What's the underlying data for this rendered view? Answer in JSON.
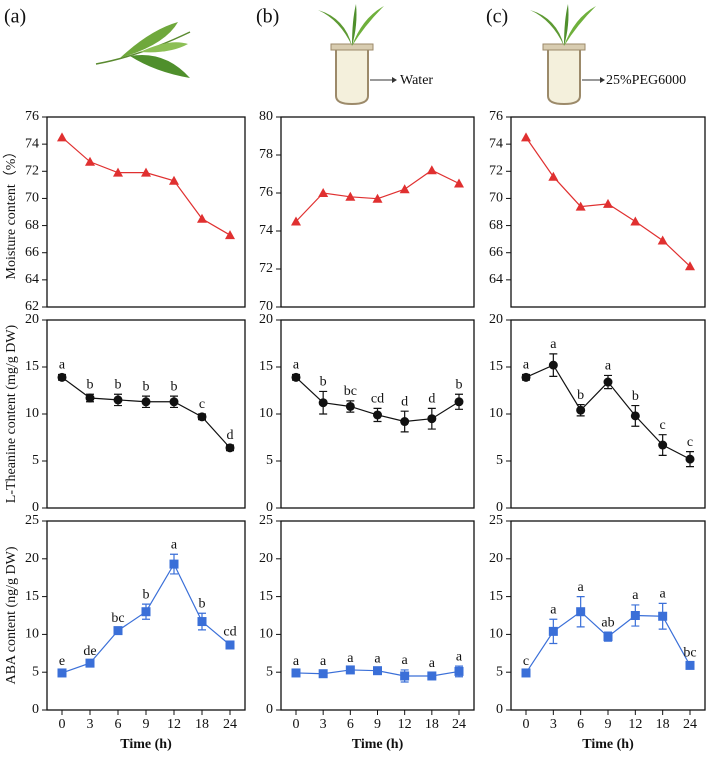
{
  "panels": [
    {
      "label": "(a)"
    },
    {
      "label": "(b)",
      "medium": "Water"
    },
    {
      "label": "(c)",
      "medium": "25%PEG6000"
    }
  ],
  "chart_data": [
    {
      "type": "line",
      "ylabel": "Moisture content（%）",
      "ylim": [
        62,
        76
      ],
      "yticks": [
        62,
        64,
        66,
        68,
        70,
        72,
        74,
        76
      ],
      "color": "#e03030",
      "marker": "triangle",
      "values": [
        74.5,
        72.7,
        71.9,
        71.9,
        71.3,
        68.5,
        67.3
      ]
    },
    {
      "type": "line",
      "ylim": [
        70,
        80
      ],
      "yticks": [
        70,
        72,
        74,
        76,
        78,
        80
      ],
      "color": "#e03030",
      "marker": "triangle",
      "values": [
        74.5,
        76.0,
        75.8,
        75.7,
        76.2,
        77.2,
        76.5
      ]
    },
    {
      "type": "line",
      "ylim": [
        62,
        76
      ],
      "yticks": [
        64,
        66,
        68,
        70,
        72,
        74,
        76
      ],
      "color": "#e03030",
      "marker": "triangle",
      "values": [
        74.5,
        71.6,
        69.4,
        69.6,
        68.3,
        66.9,
        65.0
      ]
    },
    {
      "type": "line",
      "ylabel": "L-Theanine content (mg/g DW)",
      "ylim": [
        0,
        20
      ],
      "yticks": [
        0,
        5,
        10,
        15,
        20
      ],
      "color": "#111111",
      "marker": "circle",
      "values": [
        13.9,
        11.7,
        11.5,
        11.3,
        11.3,
        9.7,
        6.4
      ],
      "errors": [
        0.3,
        0.4,
        0.6,
        0.6,
        0.6,
        0.3,
        0.3
      ],
      "annotations": [
        "a",
        "b",
        "b",
        "b",
        "b",
        "c",
        "d"
      ]
    },
    {
      "type": "line",
      "ylim": [
        0,
        20
      ],
      "yticks": [
        0,
        5,
        10,
        15,
        20
      ],
      "color": "#111111",
      "marker": "circle",
      "values": [
        13.9,
        11.2,
        10.8,
        9.9,
        9.2,
        9.5,
        11.3
      ],
      "errors": [
        0.3,
        1.2,
        0.6,
        0.7,
        1.1,
        1.1,
        0.8
      ],
      "annotations": [
        "a",
        "b",
        "bc",
        "cd",
        "d",
        "d",
        "b"
      ]
    },
    {
      "type": "line",
      "ylim": [
        0,
        20
      ],
      "yticks": [
        0,
        5,
        10,
        15,
        20
      ],
      "color": "#111111",
      "marker": "circle",
      "values": [
        13.9,
        15.2,
        10.4,
        13.4,
        9.8,
        6.7,
        5.2
      ],
      "errors": [
        0.3,
        1.2,
        0.6,
        0.7,
        1.1,
        1.1,
        0.8
      ],
      "annotations": [
        "a",
        "a",
        "b",
        "a",
        "b",
        "c",
        "c"
      ]
    },
    {
      "type": "line",
      "ylabel": "ABA  content (ng/g DW)",
      "xlabel": "Time (h)",
      "categories": [
        "0",
        "3",
        "6",
        "9",
        "12",
        "18",
        "24"
      ],
      "ylim": [
        0,
        25
      ],
      "yticks": [
        0,
        5,
        10,
        15,
        20,
        25
      ],
      "color": "#3a6fd8",
      "marker": "square",
      "values": [
        4.9,
        6.2,
        10.5,
        13.0,
        19.3,
        11.7,
        8.6
      ],
      "errors": [
        0.3,
        0.3,
        0.4,
        1.0,
        1.3,
        1.1,
        0.5
      ],
      "annotations": [
        "e",
        "de",
        "bc",
        "b",
        "a",
        "b",
        "cd"
      ]
    },
    {
      "type": "line",
      "xlabel": "Time (h)",
      "categories": [
        "0",
        "3",
        "6",
        "9",
        "12",
        "18",
        "24"
      ],
      "ylim": [
        0,
        25
      ],
      "yticks": [
        0,
        5,
        10,
        15,
        20,
        25
      ],
      "color": "#3a6fd8",
      "marker": "square",
      "values": [
        4.9,
        4.8,
        5.3,
        5.2,
        4.5,
        4.5,
        5.1
      ],
      "errors": [
        0.3,
        0.4,
        0.3,
        0.3,
        0.8,
        0.4,
        0.7
      ],
      "annotations": [
        "a",
        "a",
        "a",
        "a",
        "a",
        "a",
        "a"
      ]
    },
    {
      "type": "line",
      "xlabel": "Time (h)",
      "categories": [
        "0",
        "3",
        "6",
        "9",
        "12",
        "18",
        "24"
      ],
      "ylim": [
        0,
        25
      ],
      "yticks": [
        0,
        5,
        10,
        15,
        20,
        25
      ],
      "color": "#3a6fd8",
      "marker": "square",
      "values": [
        4.9,
        10.4,
        13.0,
        9.7,
        12.5,
        12.4,
        5.9
      ],
      "errors": [
        0.3,
        1.6,
        2.0,
        0.6,
        1.4,
        1.7,
        0.4
      ],
      "annotations": [
        "c",
        "a",
        "a",
        "ab",
        "a",
        "a",
        "bc"
      ]
    }
  ]
}
